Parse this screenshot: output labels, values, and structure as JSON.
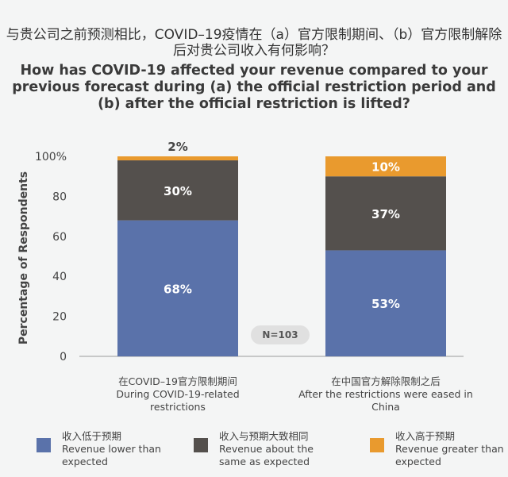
{
  "title_cn": "与贵公司之前预测相比，COVID–19疫情在（a）官方限制期间、（b）官方限制解除后对贵公司收入有何影响？",
  "title_en": "How has COVID-19 affected your revenue compared to your previous forecast during (a) the official restriction period and (b) after the official restriction is lifted?",
  "sample_note": "N=103",
  "colors": {
    "lower": "#5a72aa",
    "same": "#54504d",
    "greater": "#e99a2e"
  },
  "chart_data": {
    "type": "bar",
    "stacked": true,
    "ylabel": "Percentage of Respondents",
    "ylim": [
      0,
      100
    ],
    "yticks": [
      "0",
      "20",
      "40",
      "60",
      "80",
      "100%"
    ],
    "categories": [
      {
        "cn": "在COVID–19官方限制期间",
        "en": "During COVID-19-related restrictions"
      },
      {
        "cn": "在中国官方解除限制之后",
        "en": "After the restrictions were eased in China"
      }
    ],
    "series": [
      {
        "name_cn": "收入低于预期",
        "name_en": "Revenue lower than expected",
        "values": [
          68,
          53
        ],
        "labels": [
          "68%",
          "53%"
        ]
      },
      {
        "name_cn": "收入与预期大致相同",
        "name_en": "Revenue about the same as expected",
        "values": [
          30,
          37
        ],
        "labels": [
          "30%",
          "37%"
        ]
      },
      {
        "name_cn": "收入高于预期",
        "name_en": "Revenue greater than expected",
        "values": [
          2,
          10
        ],
        "labels": [
          "2%",
          "10%"
        ]
      }
    ]
  }
}
